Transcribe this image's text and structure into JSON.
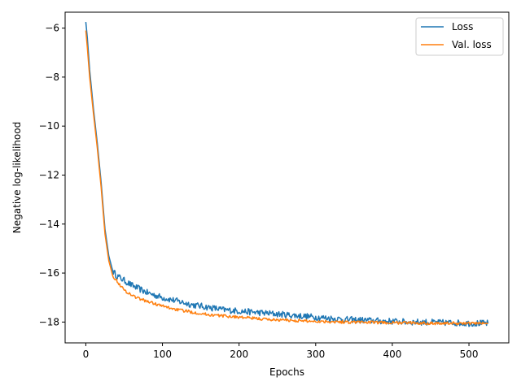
{
  "chart_data": {
    "type": "line",
    "title": "",
    "xlabel": "Epochs",
    "ylabel": "Negative log-likelihood",
    "xlim": [
      -27,
      552
    ],
    "ylim": [
      -18.85,
      -5.35
    ],
    "xticks": [
      0,
      100,
      200,
      300,
      400,
      500
    ],
    "yticks": [
      -18,
      -16,
      -14,
      -12,
      -10,
      -8,
      -6
    ],
    "grid": false,
    "legend_position": "top-right",
    "series": [
      {
        "name": "Loss",
        "color": "#1f77b4",
        "x": [
          0,
          2,
          5,
          10,
          15,
          20,
          25,
          30,
          35,
          40,
          45,
          50,
          60,
          70,
          80,
          90,
          100,
          120,
          140,
          160,
          180,
          200,
          220,
          240,
          260,
          280,
          300,
          320,
          340,
          360,
          380,
          400,
          420,
          440,
          460,
          480,
          500,
          525
        ],
        "y": [
          -5.75,
          -6.4,
          -7.7,
          -9.3,
          -10.7,
          -12.3,
          -14.2,
          -15.3,
          -15.9,
          -16.1,
          -16.2,
          -16.3,
          -16.5,
          -16.65,
          -16.8,
          -16.9,
          -17.0,
          -17.15,
          -17.3,
          -17.4,
          -17.5,
          -17.55,
          -17.6,
          -17.65,
          -17.7,
          -17.75,
          -17.8,
          -17.85,
          -17.9,
          -17.92,
          -17.95,
          -17.97,
          -18.0,
          -18.0,
          -18.02,
          -18.03,
          -18.05,
          -18.05
        ]
      },
      {
        "name": "Val. loss",
        "color": "#ff7f0e",
        "x": [
          0,
          2,
          5,
          10,
          15,
          20,
          25,
          30,
          35,
          40,
          45,
          50,
          60,
          70,
          80,
          90,
          100,
          120,
          140,
          160,
          180,
          200,
          220,
          240,
          260,
          280,
          300,
          320,
          340,
          360,
          380,
          400,
          420,
          440,
          460,
          480,
          500,
          525
        ],
        "y": [
          -6.1,
          -6.8,
          -8.0,
          -9.5,
          -10.9,
          -12.5,
          -14.4,
          -15.5,
          -16.1,
          -16.3,
          -16.5,
          -16.7,
          -16.9,
          -17.05,
          -17.15,
          -17.25,
          -17.35,
          -17.5,
          -17.6,
          -17.7,
          -17.75,
          -17.8,
          -17.85,
          -17.9,
          -17.92,
          -17.95,
          -17.97,
          -17.98,
          -18.0,
          -18.0,
          -18.02,
          -18.03,
          -18.03,
          -18.04,
          -18.05,
          -18.05,
          -18.05,
          -18.05
        ]
      }
    ]
  }
}
